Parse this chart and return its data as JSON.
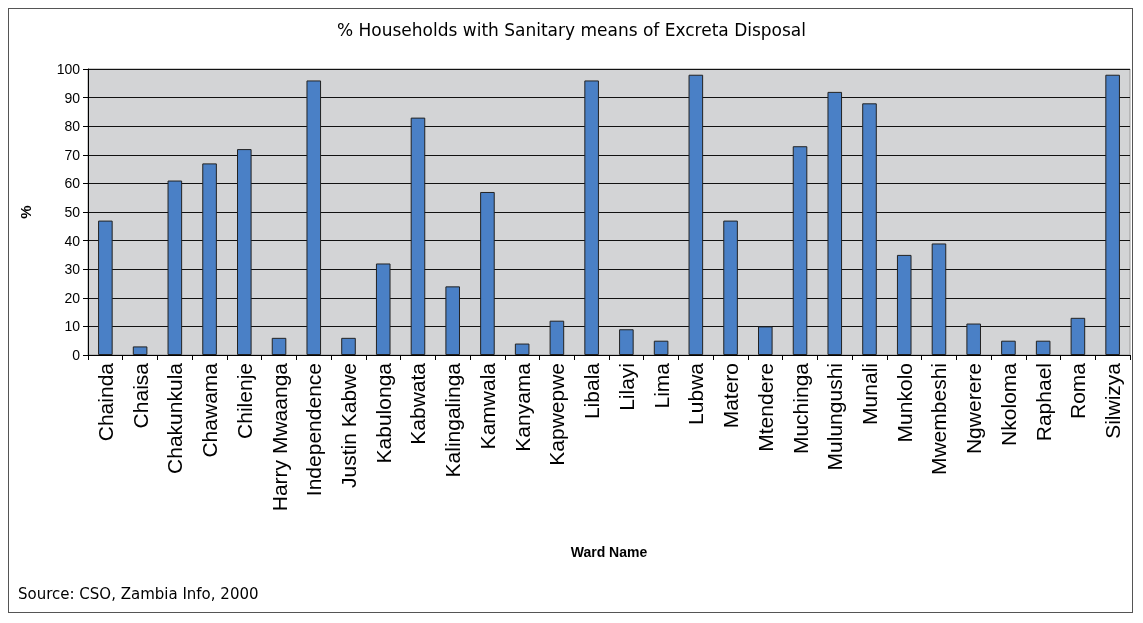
{
  "chart_data": {
    "type": "bar",
    "title": "% Households with Sanitary means of Excreta Disposal",
    "xlabel": "Ward Name",
    "ylabel": "%",
    "categories": [
      "Chainda",
      "Chaisa",
      "Chakunkula",
      "Chawama",
      "Chilenje",
      "Harry Mwaanga",
      "Independence",
      "Justin Kabwe",
      "Kabulonga",
      "Kabwata",
      "Kalingalinga",
      "Kamwala",
      "Kanyama",
      "Kapwepwe",
      "Libala",
      "Lilayi",
      "Lima",
      "Lubwa",
      "Matero",
      "Mtendere",
      "Muchinga",
      "Mulungushi",
      "Munali",
      "Munkolo",
      "Mwembeshi",
      "Ngwerere",
      "Nkoloma",
      "Raphael",
      "Roma",
      "Silwizya"
    ],
    "values": [
      47,
      3,
      61,
      67,
      72,
      6,
      96,
      6,
      32,
      83,
      24,
      57,
      4,
      12,
      96,
      9,
      5,
      98,
      47,
      10,
      73,
      92,
      88,
      35,
      39,
      11,
      5,
      5,
      13,
      98
    ],
    "color": "#4a80c6",
    "ylim": [
      0,
      100
    ],
    "yticks": [
      0,
      10,
      20,
      30,
      40,
      50,
      60,
      70,
      80,
      90,
      100
    ],
    "grid": "y",
    "annotations": [
      "Source: CSO, Zambia Info, 2000"
    ]
  }
}
